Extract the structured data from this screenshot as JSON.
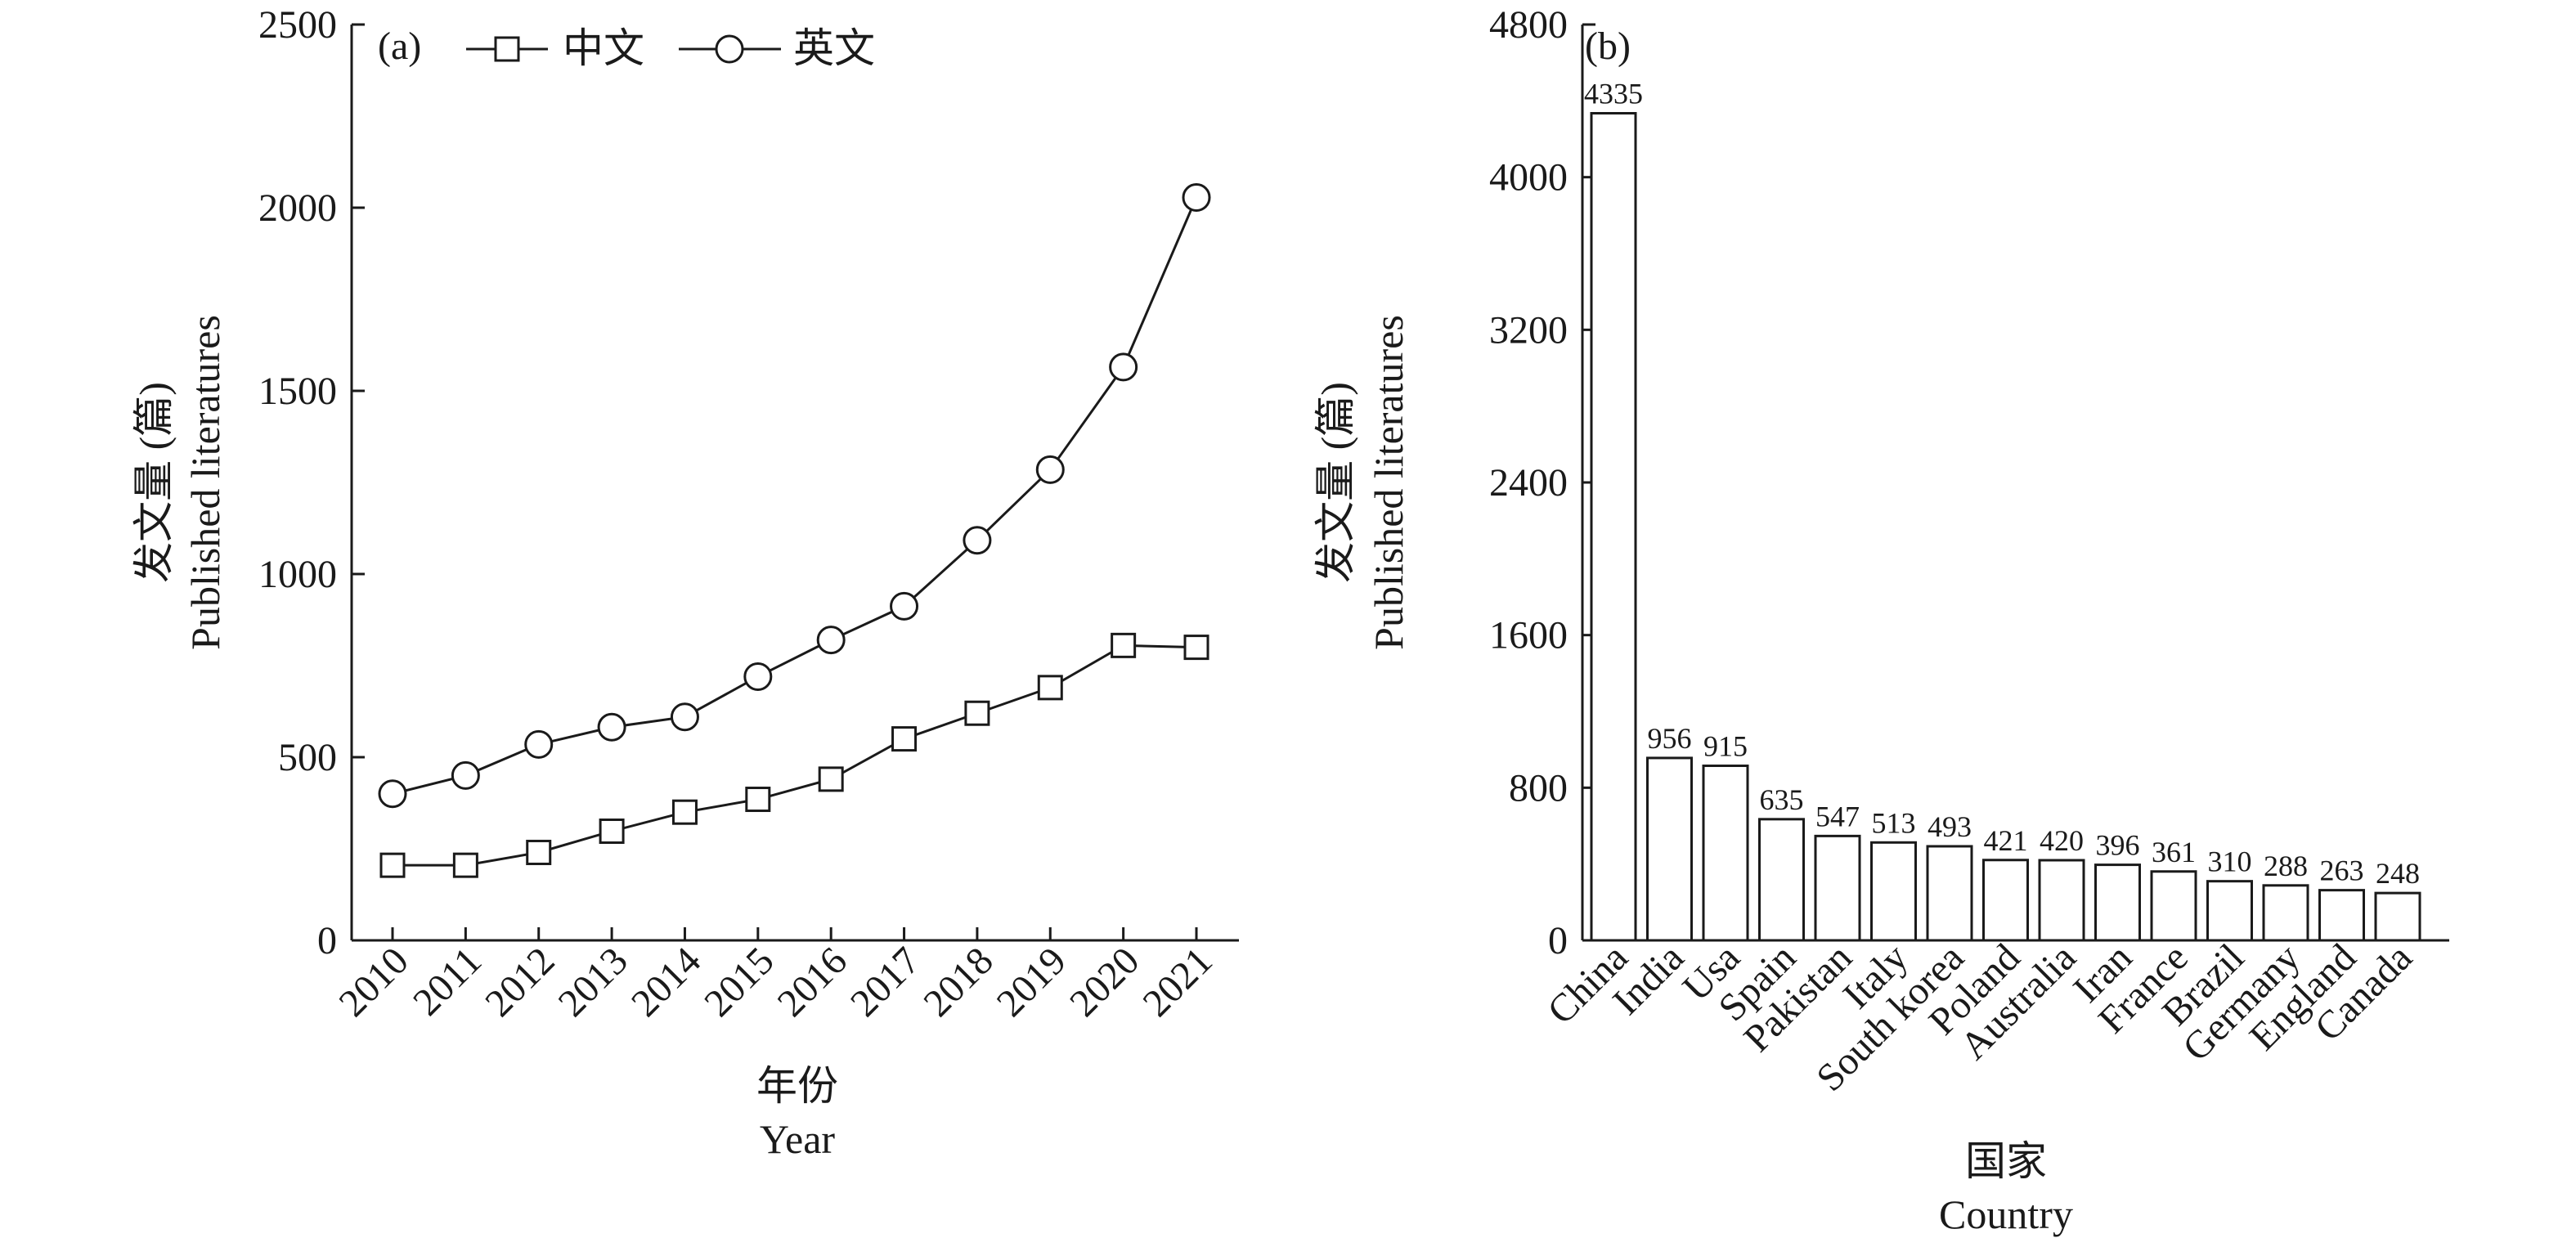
{
  "chart_data": [
    {
      "type": "line",
      "panel_label": "(a)",
      "x": [
        "2010",
        "2011",
        "2012",
        "2013",
        "2014",
        "2015",
        "2016",
        "2017",
        "2018",
        "2019",
        "2020",
        "2021"
      ],
      "series": [
        {
          "name": "中文",
          "marker": "square",
          "values": [
            205,
            205,
            240,
            298,
            350,
            385,
            440,
            550,
            620,
            690,
            805,
            800
          ]
        },
        {
          "name": "英文",
          "marker": "circle",
          "values": [
            400,
            450,
            535,
            582,
            610,
            720,
            820,
            912,
            1092,
            1285,
            1565,
            2028
          ]
        }
      ],
      "xlabel_zh": "年份",
      "xlabel": "Year",
      "ylabel_zh": "发文量 (篇)",
      "ylabel": "Published literatures",
      "ylim": [
        0,
        2500
      ],
      "yticks": [
        "0",
        "500",
        "1000",
        "1500",
        "2000",
        "2500"
      ],
      "grid": false,
      "legend_position": "top-left"
    },
    {
      "type": "bar",
      "panel_label": "(b)",
      "categories": [
        "China",
        "India",
        "Usa",
        "Spain",
        "Pakistan",
        "Italy",
        "South korea",
        "Poland",
        "Australia",
        "Iran",
        "France",
        "Brazil",
        "Germany",
        "England",
        "Canada"
      ],
      "values": [
        4335,
        956,
        915,
        635,
        547,
        513,
        493,
        421,
        420,
        396,
        361,
        310,
        288,
        263,
        248
      ],
      "xlabel_zh": "国家",
      "xlabel": "Country",
      "ylabel_zh": "发文量 (篇)",
      "ylabel": "Published literatures",
      "ylim": [
        0,
        4800
      ],
      "yticks": [
        "0",
        "800",
        "1600",
        "2400",
        "3200",
        "4000",
        "4800"
      ],
      "grid": false
    }
  ]
}
